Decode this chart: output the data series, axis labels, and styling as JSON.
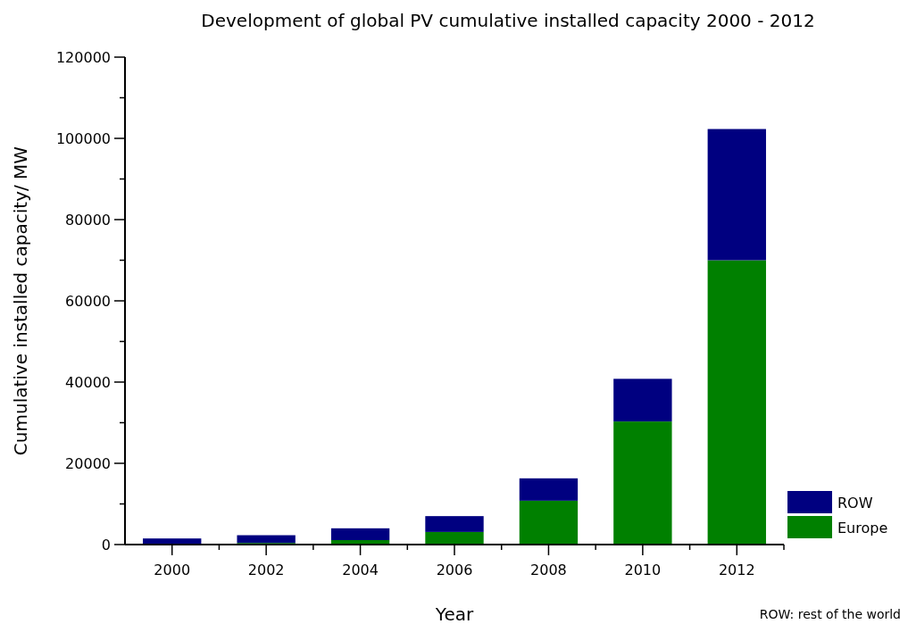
{
  "chart_data": {
    "type": "bar",
    "title": "Development of global PV cumulative installed capacity 2000 - 2012",
    "xlabel": "Year",
    "ylabel": "Cumulative installed capacity/ MW",
    "categories": [
      "2000",
      "2002",
      "2004",
      "2006",
      "2008",
      "2010",
      "2012"
    ],
    "series": [
      {
        "name": "Europe",
        "color": "#008000",
        "values": [
          null,
          400,
          1100,
          3100,
          10800,
          30300,
          70000
        ]
      },
      {
        "name": "ROW",
        "color": "#000080",
        "values": [
          1500,
          1900,
          2900,
          3900,
          5500,
          10500,
          32300
        ]
      }
    ],
    "stacked": true,
    "ylim": [
      0,
      120000
    ],
    "yticks": [
      0,
      {
        "value": 10000,
        "label": null
      },
      20000,
      {
        "value": 30000,
        "label": null
      },
      40000,
      {
        "value": 50000,
        "label": null
      },
      60000,
      {
        "value": 70000,
        "label": null
      },
      80000,
      {
        "value": 90000,
        "label": null
      },
      100000,
      {
        "value": 110000,
        "label": null
      },
      120000
    ],
    "legend": "bottom right",
    "annotations": [
      "ROW: rest of the world"
    ]
  }
}
